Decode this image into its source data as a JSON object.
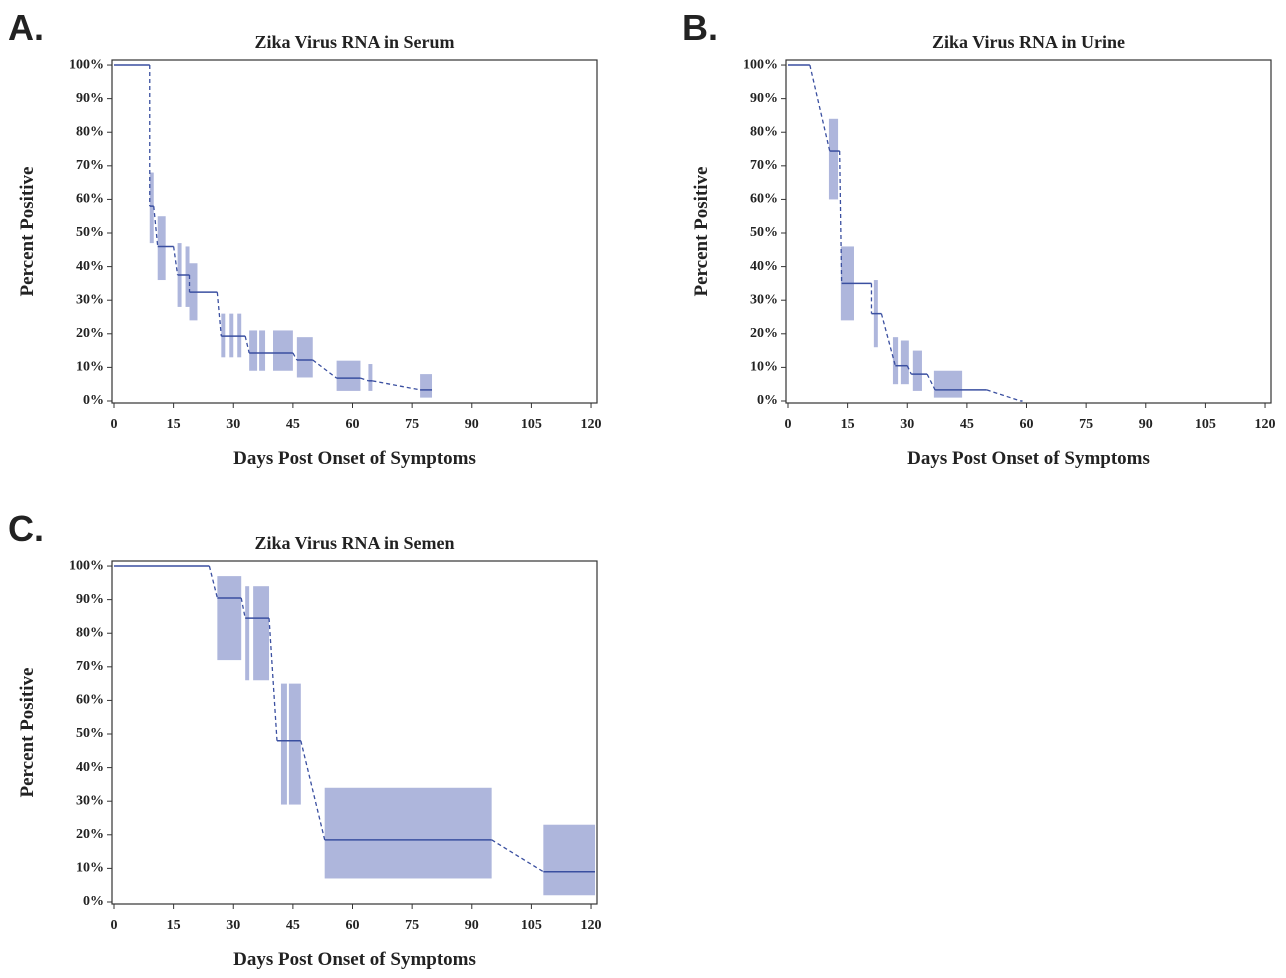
{
  "chart_data": [
    {
      "type": "step",
      "panel": "A.",
      "title": "Zika Virus RNA in Serum",
      "ylabel": "Percent Positive",
      "xlabel": "Days Post Onset of Symptoms",
      "xlim": [
        -0.5,
        121.5
      ],
      "ylim": [
        -0.6,
        101.5
      ],
      "xticks": [
        0,
        15,
        30,
        45,
        60,
        75,
        90,
        105,
        120
      ],
      "yticks": [
        {
          "value": 0,
          "label": "0%"
        },
        {
          "value": 10,
          "label": "10%"
        },
        {
          "value": 20,
          "label": "20%"
        },
        {
          "value": 30,
          "label": "30%"
        },
        {
          "value": 40,
          "label": "40%"
        },
        {
          "value": 50,
          "label": "50%"
        },
        {
          "value": 60,
          "label": "60%"
        },
        {
          "value": 70,
          "label": "70%"
        },
        {
          "value": 80,
          "label": "80%"
        },
        {
          "value": 90,
          "label": "90%"
        },
        {
          "value": 100,
          "label": "100%"
        }
      ],
      "color": "#3a4fa0",
      "ci_color": "#aeb6dc",
      "steps": {
        "x": [
          0,
          9,
          11,
          16,
          19,
          27,
          34,
          46,
          56,
          64,
          77
        ],
        "x_end": [
          9,
          10,
          15,
          19,
          26,
          33,
          45,
          50,
          62,
          65,
          80
        ],
        "values": [
          100,
          58,
          46,
          37.5,
          32.4,
          19.3,
          14.3,
          12.2,
          6.8,
          6,
          3.3
        ]
      },
      "ci": {
        "x": [
          9,
          11,
          16,
          18,
          19,
          27,
          29,
          31,
          34,
          36.5,
          40,
          46,
          56,
          64,
          77
        ],
        "x_end": [
          10,
          13,
          17,
          19,
          21,
          28,
          30,
          32,
          36,
          38,
          45,
          50,
          62,
          65,
          80
        ],
        "lower": [
          47,
          36,
          28,
          28,
          24,
          13,
          13,
          13,
          9,
          9,
          9,
          7,
          3,
          3,
          1
        ],
        "upper": [
          68,
          55,
          47,
          46,
          41,
          26,
          26,
          26,
          21,
          21,
          21,
          19,
          12,
          11,
          8
        ]
      }
    },
    {
      "type": "step",
      "panel": "B.",
      "title": "Zika Virus RNA in Urine",
      "ylabel": "Percent Positive",
      "xlabel": "Days Post Onset of Symptoms",
      "xlim": [
        -0.5,
        121.5
      ],
      "ylim": [
        -0.6,
        101.5
      ],
      "xticks": [
        0,
        15,
        30,
        45,
        60,
        75,
        90,
        105,
        120
      ],
      "yticks": [
        {
          "value": 0,
          "label": "0%"
        },
        {
          "value": 10,
          "label": "10%"
        },
        {
          "value": 20,
          "label": "20%"
        },
        {
          "value": 30,
          "label": "30%"
        },
        {
          "value": 40,
          "label": "40%"
        },
        {
          "value": 50,
          "label": "50%"
        },
        {
          "value": 60,
          "label": "60%"
        },
        {
          "value": 70,
          "label": "70%"
        },
        {
          "value": 80,
          "label": "80%"
        },
        {
          "value": 90,
          "label": "90%"
        },
        {
          "value": 100,
          "label": "100%"
        }
      ],
      "color": "#3a4fa0",
      "ci_color": "#aeb6dc",
      "steps": {
        "x": [
          0,
          10.5,
          13.5,
          21,
          27,
          31,
          37,
          58.5
        ],
        "x_end": [
          5.5,
          13,
          21,
          23.5,
          30,
          35,
          50,
          59
        ],
        "values": [
          100,
          74.4,
          35,
          26,
          10.5,
          8,
          3.3,
          0
        ]
      },
      "ci": {
        "x": [
          10.3,
          13.3,
          21.6,
          26.4,
          28.4,
          31.4,
          36.7
        ],
        "x_end": [
          12.6,
          16.6,
          22.6,
          27.7,
          30.4,
          33.7,
          43.8
        ],
        "lower": [
          60,
          24,
          16,
          5,
          5,
          3,
          1
        ],
        "upper": [
          84,
          46,
          36,
          19,
          18,
          15,
          9
        ]
      }
    },
    {
      "type": "step",
      "panel": "C.",
      "title": "Zika Virus RNA in Semen",
      "ylabel": "Percent Positive",
      "xlabel": "Days Post Onset of Symptoms",
      "xlim": [
        -0.5,
        121.5
      ],
      "ylim": [
        -0.6,
        101.5
      ],
      "xticks": [
        0,
        15,
        30,
        45,
        60,
        75,
        90,
        105,
        120
      ],
      "yticks": [
        {
          "value": 0,
          "label": "0%"
        },
        {
          "value": 10,
          "label": "10%"
        },
        {
          "value": 20,
          "label": "20%"
        },
        {
          "value": 30,
          "label": "30%"
        },
        {
          "value": 40,
          "label": "40%"
        },
        {
          "value": 50,
          "label": "50%"
        },
        {
          "value": 60,
          "label": "60%"
        },
        {
          "value": 70,
          "label": "70%"
        },
        {
          "value": 80,
          "label": "80%"
        },
        {
          "value": 90,
          "label": "90%"
        },
        {
          "value": 100,
          "label": "100%"
        }
      ],
      "color": "#3a4fa0",
      "ci_color": "#aeb6dc",
      "steps": {
        "x": [
          0,
          26,
          33,
          41,
          53,
          108
        ],
        "x_end": [
          24,
          32,
          39,
          47,
          95,
          121
        ],
        "values": [
          100,
          90.5,
          84.5,
          48,
          18.5,
          9
        ]
      },
      "ci": {
        "x": [
          26,
          33,
          35,
          42,
          44,
          53,
          108
        ],
        "x_end": [
          32,
          34,
          39,
          43.5,
          47,
          95,
          121
        ],
        "lower": [
          72,
          66,
          66,
          29,
          29,
          7,
          2
        ],
        "upper": [
          97,
          94,
          94,
          65,
          65,
          34,
          23
        ]
      }
    }
  ]
}
